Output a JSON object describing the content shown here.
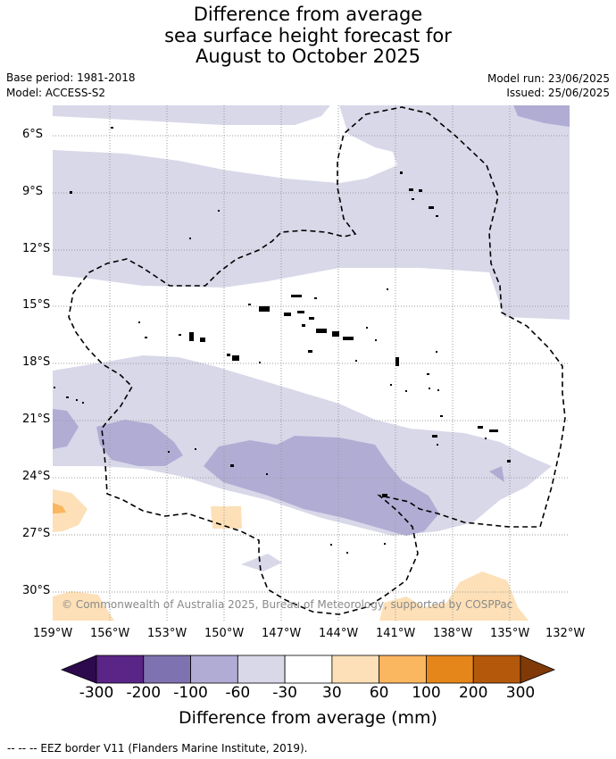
{
  "header": {
    "title_line1": "Difference from average",
    "title_line2": "sea surface height forecast for",
    "title_line3": "August to October 2025",
    "base_period": "Base period: 1981-2018",
    "model": "Model: ACCESS-S2",
    "model_run": "Model run: 23/06/2025",
    "issued": "Issued: 25/06/2025"
  },
  "map": {
    "latitude_labels": [
      "6°S",
      "9°S",
      "12°S",
      "15°S",
      "18°S",
      "21°S",
      "24°S",
      "27°S",
      "30°S"
    ],
    "longitude_labels": [
      "159°W",
      "156°W",
      "153°W",
      "150°W",
      "147°W",
      "144°W",
      "141°W",
      "138°W",
      "135°W",
      "132°W"
    ],
    "copyright": "© Commonwealth of Australia 2025, Bureau of Meteorology, supported by COSPPac"
  },
  "colorbar": {
    "title": "Difference from average (mm)",
    "tick_labels": [
      "-300",
      "-200",
      "-100",
      "-60",
      "-30",
      "30",
      "60",
      "100",
      "200",
      "300"
    ],
    "colors": {
      "below_-300": "#2d0a4e",
      "-300_-200": "#5a2586",
      "-200_-100": "#7f72b0",
      "-100_-60": "#b1acd4",
      "-60_-30": "#d8d8e9",
      "-30_30": "#ffffff",
      "30_60": "#fde0b7",
      "60_100": "#fbb660",
      "100_200": "#e5861a",
      "200_300": "#b4580b",
      "above_300": "#7f3a08"
    }
  },
  "legend": {
    "eez_label": "--  --  -- EEZ border V11 (Flanders Marine Institute, 2019)."
  }
}
